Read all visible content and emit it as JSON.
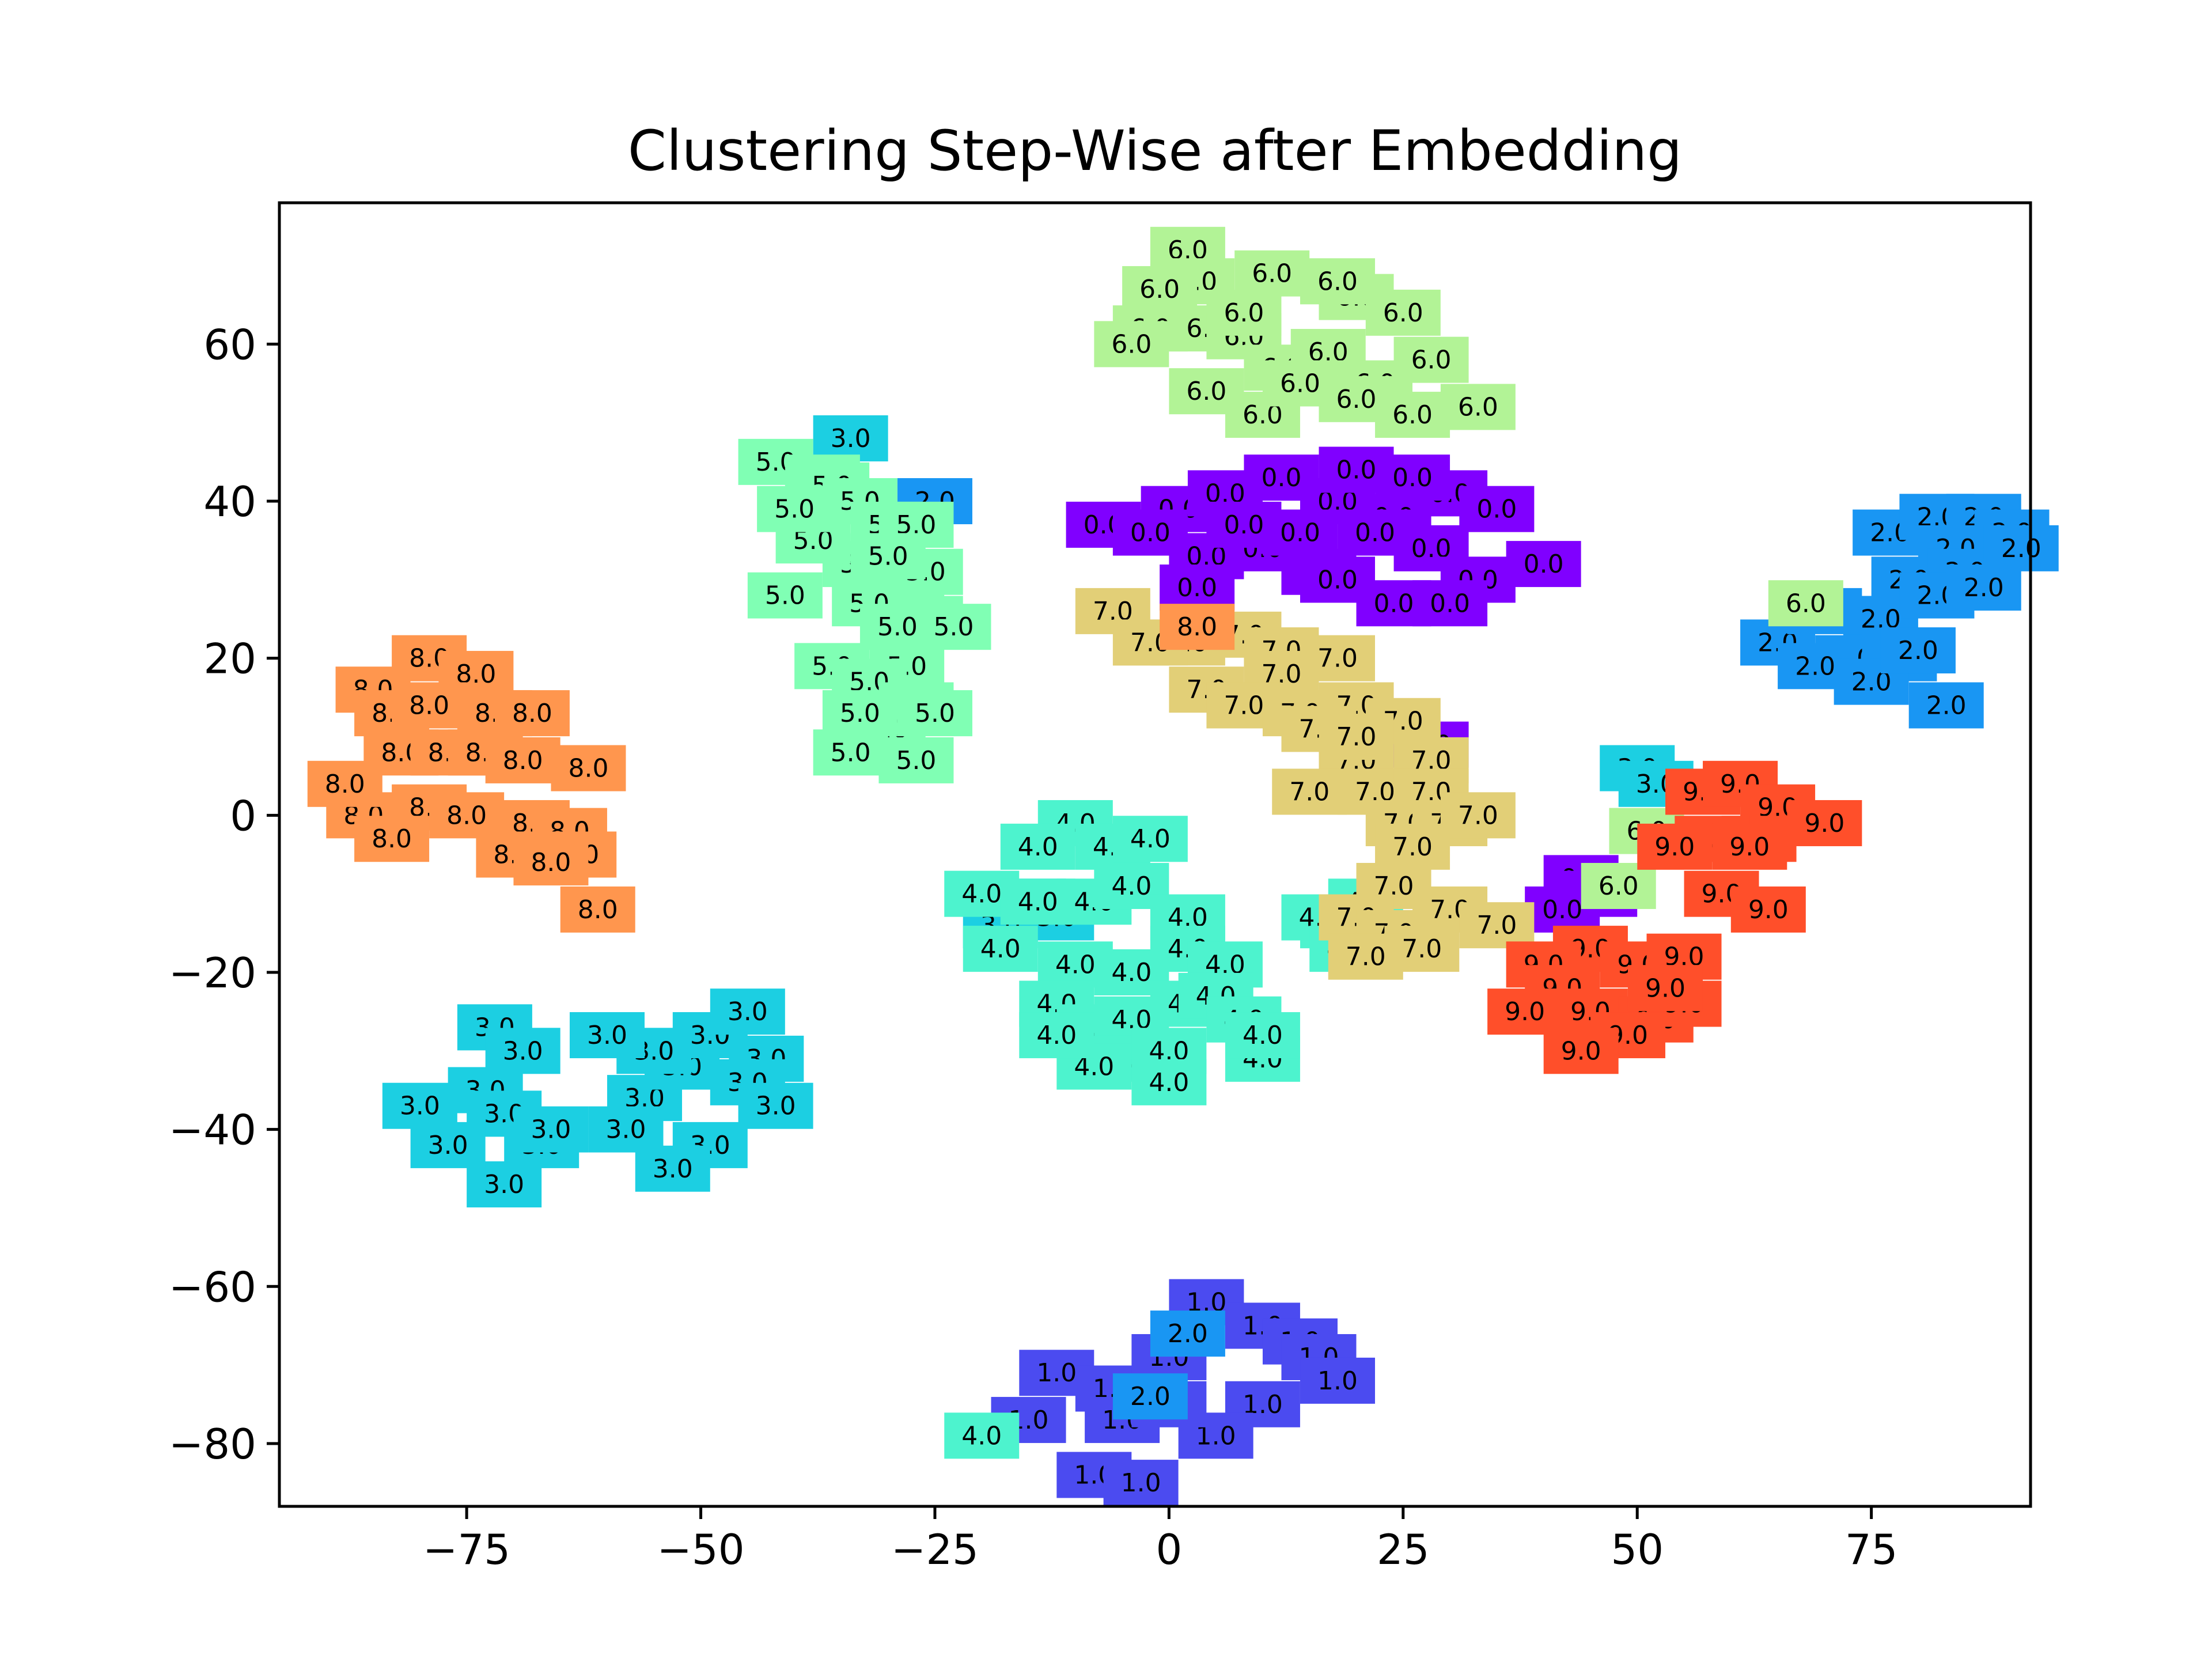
{
  "chart_data": {
    "type": "scatter",
    "title": "Clustering Step-Wise after Embedding",
    "xlabel": "",
    "ylabel": "",
    "xlim": [
      -95,
      92
    ],
    "ylim": [
      -88,
      78
    ],
    "xticks": [
      -75,
      -50,
      -25,
      0,
      25,
      50,
      75
    ],
    "yticks": [
      -80,
      -60,
      -40,
      -20,
      0,
      20,
      40,
      60
    ],
    "xtick_labels": [
      "−75",
      "−50",
      "−25",
      "0",
      "25",
      "50",
      "75"
    ],
    "ytick_labels": [
      "−80",
      "−60",
      "−40",
      "−20",
      "0",
      "20",
      "40",
      "60"
    ],
    "grid": false,
    "legend": "none",
    "colors": {
      "0.0": "#8000ff",
      "1.0": "#4b4bf0",
      "2.0": "#1996f3",
      "3.0": "#1ccfe2",
      "4.0": "#4df3ce",
      "5.0": "#80ffb4",
      "6.0": "#b2f396",
      "7.0": "#e2cf77",
      "8.0": "#ff964e",
      "9.0": "#ff4f2a"
    },
    "series": [
      {
        "label": "0.0",
        "points": [
          [
            -7,
            37
          ],
          [
            1,
            39
          ],
          [
            6,
            41
          ],
          [
            12,
            43
          ],
          [
            18,
            40
          ],
          [
            24,
            38
          ],
          [
            30,
            41
          ],
          [
            35,
            39
          ],
          [
            4,
            33
          ],
          [
            10,
            34
          ],
          [
            16,
            31
          ],
          [
            22,
            36
          ],
          [
            28,
            34
          ],
          [
            33,
            30
          ],
          [
            40,
            32
          ],
          [
            -2,
            36
          ],
          [
            8,
            37
          ],
          [
            20,
            44
          ],
          [
            26,
            43
          ],
          [
            14,
            36
          ],
          [
            24,
            27
          ],
          [
            30,
            27
          ],
          [
            3,
            29
          ],
          [
            18,
            30
          ],
          [
            44,
            -8
          ],
          [
            46,
            -10
          ],
          [
            42,
            -12
          ],
          [
            28,
            9
          ]
        ]
      },
      {
        "label": "1.0",
        "points": [
          [
            -12,
            -71
          ],
          [
            -6,
            -73
          ],
          [
            0,
            -69
          ],
          [
            4,
            -62
          ],
          [
            10,
            -65
          ],
          [
            14,
            -67
          ],
          [
            16,
            -69
          ],
          [
            18,
            -72
          ],
          [
            10,
            -75
          ],
          [
            5,
            -79
          ],
          [
            -5,
            -77
          ],
          [
            -8,
            -84
          ],
          [
            -3,
            -85
          ],
          [
            0,
            -75
          ],
          [
            -15,
            -77
          ]
        ]
      },
      {
        "label": "2.0",
        "points": [
          [
            77,
            36
          ],
          [
            82,
            38
          ],
          [
            87,
            38
          ],
          [
            90,
            36
          ],
          [
            84,
            34
          ],
          [
            79,
            30
          ],
          [
            85,
            31
          ],
          [
            91,
            34
          ],
          [
            76,
            25
          ],
          [
            82,
            28
          ],
          [
            87,
            29
          ],
          [
            73,
            20
          ],
          [
            78,
            20
          ],
          [
            65,
            22
          ],
          [
            69,
            19
          ],
          [
            75,
            17
          ],
          [
            80,
            21
          ],
          [
            83,
            14
          ],
          [
            70,
            26
          ],
          [
            -25,
            40
          ],
          [
            2,
            -66
          ],
          [
            -2,
            -74
          ]
        ]
      },
      {
        "label": "3.0",
        "points": [
          [
            -34,
            48
          ],
          [
            -72,
            -27
          ],
          [
            -69,
            -30
          ],
          [
            -73,
            -35
          ],
          [
            -71,
            -38
          ],
          [
            -67,
            -42
          ],
          [
            -71,
            -47
          ],
          [
            -66,
            -40
          ],
          [
            -56,
            -36
          ],
          [
            -52,
            -32
          ],
          [
            -49,
            -28
          ],
          [
            -45,
            -25
          ],
          [
            -43,
            -31
          ],
          [
            -45,
            -34
          ],
          [
            -42,
            -37
          ],
          [
            -49,
            -42
          ],
          [
            -53,
            -45
          ],
          [
            -58,
            -40
          ],
          [
            -55,
            -30
          ],
          [
            -77,
            -42
          ],
          [
            -80,
            -37
          ],
          [
            -60,
            -28
          ],
          [
            50,
            6
          ],
          [
            52,
            4
          ],
          [
            -15,
            -11
          ],
          [
            -12,
            -13
          ],
          [
            -18,
            -14
          ]
        ]
      },
      {
        "label": "4.0",
        "points": [
          [
            -10,
            -1
          ],
          [
            -6,
            -4
          ],
          [
            -2,
            -3
          ],
          [
            -14,
            -4
          ],
          [
            -20,
            -10
          ],
          [
            -14,
            -11
          ],
          [
            -8,
            -11
          ],
          [
            -4,
            -9
          ],
          [
            2,
            -13
          ],
          [
            -18,
            -17
          ],
          [
            -10,
            -19
          ],
          [
            -4,
            -20
          ],
          [
            2,
            -17
          ],
          [
            6,
            -19
          ],
          [
            -12,
            -24
          ],
          [
            -8,
            -27
          ],
          [
            -4,
            -26
          ],
          [
            2,
            -24
          ],
          [
            5,
            -23
          ],
          [
            8,
            -26
          ],
          [
            10,
            -31
          ],
          [
            -4,
            -31
          ],
          [
            0,
            -30
          ],
          [
            -8,
            -32
          ],
          [
            0,
            -34
          ],
          [
            -12,
            -28
          ],
          [
            10,
            -28
          ],
          [
            -20,
            -79
          ],
          [
            18,
            -14
          ],
          [
            21,
            -11
          ],
          [
            16,
            -13
          ],
          [
            19,
            -17
          ]
        ]
      },
      {
        "label": "5.0",
        "points": [
          [
            -42,
            45
          ],
          [
            -37,
            43
          ],
          [
            -36,
            42
          ],
          [
            -33,
            40
          ],
          [
            -30,
            37
          ],
          [
            -27,
            37
          ],
          [
            -33,
            32
          ],
          [
            -28,
            30
          ],
          [
            -26,
            31
          ],
          [
            -41,
            28
          ],
          [
            -32,
            27
          ],
          [
            -38,
            35
          ],
          [
            -26,
            25
          ],
          [
            -29,
            24
          ],
          [
            -23,
            24
          ],
          [
            -28,
            19
          ],
          [
            -36,
            19
          ],
          [
            -32,
            17
          ],
          [
            -27,
            14
          ],
          [
            -30,
            11
          ],
          [
            -25,
            13
          ],
          [
            -34,
            8
          ],
          [
            -27,
            7
          ],
          [
            -33,
            13
          ],
          [
            -40,
            39
          ],
          [
            -30,
            33
          ]
        ]
      },
      {
        "label": "6.0",
        "points": [
          [
            2,
            72
          ],
          [
            3,
            68
          ],
          [
            11,
            69
          ],
          [
            20,
            66
          ],
          [
            25,
            64
          ],
          [
            18,
            68
          ],
          [
            -1,
            67
          ],
          [
            -2,
            62
          ],
          [
            4,
            62
          ],
          [
            8,
            61
          ],
          [
            12,
            57
          ],
          [
            17,
            59
          ],
          [
            22,
            55
          ],
          [
            26,
            51
          ],
          [
            33,
            52
          ],
          [
            28,
            58
          ],
          [
            10,
            51
          ],
          [
            4,
            54
          ],
          [
            14,
            55
          ],
          [
            20,
            53
          ],
          [
            -4,
            60
          ],
          [
            8,
            64
          ],
          [
            68,
            27
          ],
          [
            51,
            -2
          ],
          [
            48,
            -9
          ]
        ]
      },
      {
        "label": "7.0",
        "points": [
          [
            -6,
            26
          ],
          [
            2,
            22
          ],
          [
            8,
            23
          ],
          [
            12,
            21
          ],
          [
            18,
            20
          ],
          [
            12,
            18
          ],
          [
            4,
            16
          ],
          [
            8,
            14
          ],
          [
            14,
            13
          ],
          [
            20,
            14
          ],
          [
            25,
            12
          ],
          [
            16,
            11
          ],
          [
            28,
            7
          ],
          [
            20,
            7
          ],
          [
            15,
            3
          ],
          [
            22,
            3
          ],
          [
            28,
            3
          ],
          [
            25,
            -1
          ],
          [
            30,
            -1
          ],
          [
            33,
            0
          ],
          [
            26,
            -4
          ],
          [
            24,
            -9
          ],
          [
            20,
            -13
          ],
          [
            24,
            -15
          ],
          [
            30,
            -12
          ],
          [
            35,
            -14
          ],
          [
            27,
            -17
          ],
          [
            21,
            -18
          ],
          [
            -2,
            22
          ],
          [
            20,
            10
          ]
        ]
      },
      {
        "label": "8.0",
        "points": [
          [
            -79,
            20
          ],
          [
            -85,
            16
          ],
          [
            -83,
            13
          ],
          [
            -74,
            18
          ],
          [
            -79,
            14
          ],
          [
            -72,
            13
          ],
          [
            -68,
            13
          ],
          [
            -82,
            8
          ],
          [
            -77,
            8
          ],
          [
            -73,
            8
          ],
          [
            -69,
            7
          ],
          [
            -62,
            6
          ],
          [
            -86,
            0
          ],
          [
            -79,
            1
          ],
          [
            -75,
            0
          ],
          [
            -68,
            -1
          ],
          [
            -64,
            -2
          ],
          [
            -83,
            -3
          ],
          [
            -70,
            -5
          ],
          [
            -63,
            -5
          ],
          [
            -66,
            -6
          ],
          [
            -61,
            -12
          ],
          [
            -88,
            4
          ],
          [
            3,
            24
          ]
        ]
      },
      {
        "label": "9.0",
        "points": [
          [
            57,
            3
          ],
          [
            61,
            4
          ],
          [
            65,
            1
          ],
          [
            70,
            -1
          ],
          [
            63,
            -3
          ],
          [
            58,
            -3
          ],
          [
            54,
            -4
          ],
          [
            62,
            -4
          ],
          [
            59,
            -10
          ],
          [
            64,
            -12
          ],
          [
            45,
            -17
          ],
          [
            50,
            -19
          ],
          [
            55,
            -18
          ],
          [
            40,
            -19
          ],
          [
            42,
            -22
          ],
          [
            45,
            -25
          ],
          [
            52,
            -26
          ],
          [
            55,
            -24
          ],
          [
            49,
            -28
          ],
          [
            44,
            -30
          ],
          [
            38,
            -25
          ],
          [
            53,
            -22
          ]
        ]
      }
    ]
  }
}
